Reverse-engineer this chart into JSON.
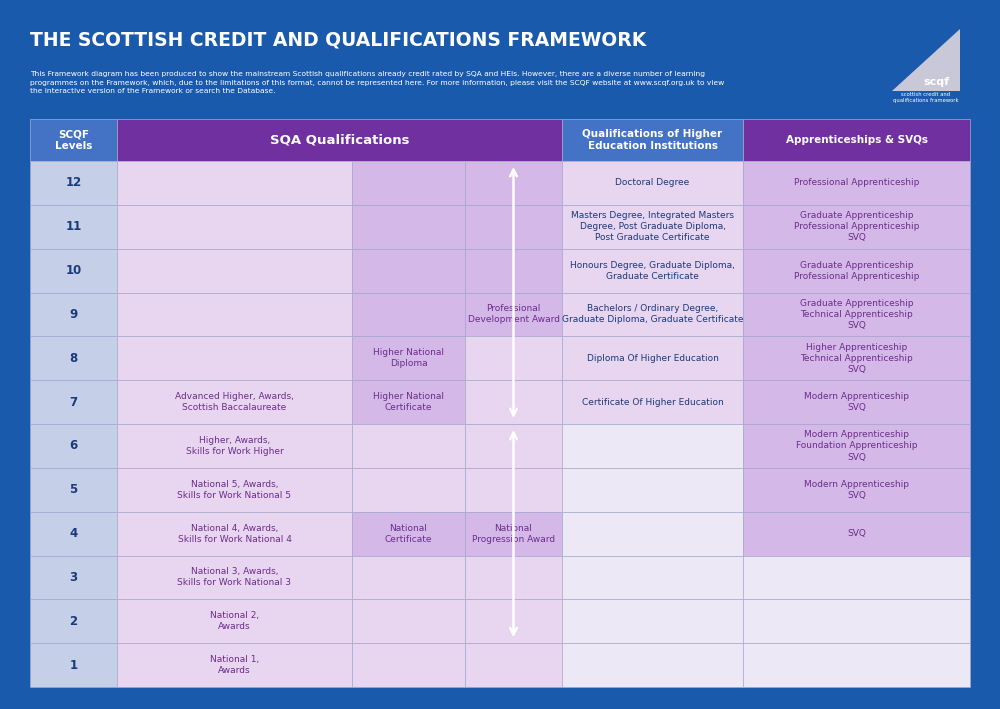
{
  "title": "THE SCOTTISH CREDIT AND QUALIFICATIONS FRAMEWORK",
  "subtitle": "This Framework diagram has been produced to show the mainstream Scottish qualifications already credit rated by SQA and HEIs. However, there are a diverse number of learning\nprogrammes on the Framework, which, due to the limitations of this format, cannot be represented here. For more information, please visit the SCQF website at www.scqf.org.uk to view\nthe interactive version of the Framework or search the Database.",
  "bg_color": "#1a5aad",
  "header_purple": "#7030a0",
  "header_blue": "#4472c4",
  "cell_light_purple": "#e8d5f0",
  "cell_medium_purple": "#d4b8e8",
  "cell_light_blue": "#c5d0e8",
  "cell_empty_purple": "#ede8f5",
  "text_dark_blue": "#1a3a7a",
  "text_purple": "#6b2d8b",
  "text_white": "#ffffff",
  "border_color": "#aaaacc",
  "levels": [
    12,
    11,
    10,
    9,
    8,
    7,
    6,
    5,
    4,
    3,
    2,
    1
  ],
  "col1_content": {
    "12": "",
    "11": "",
    "10": "",
    "9": "",
    "8": "",
    "7": "Advanced Higher, Awards,\nScottish Baccalaureate",
    "6": "Higher, Awards,\nSkills for Work Higher",
    "5": "National 5, Awards,\nSkills for Work National 5",
    "4": "National 4, Awards,\nSkills for Work National 4",
    "3": "National 3, Awards,\nSkills for Work National 3",
    "2": "National 2,\nAwards",
    "1": "National 1,\nAwards"
  },
  "col2_content": {
    "12": "",
    "11": "",
    "10": "",
    "9": "",
    "8": "Higher National\nDiploma",
    "7": "Higher National\nCertificate",
    "6": "",
    "5": "",
    "4": "National\nCertificate",
    "3": "",
    "2": "",
    "1": ""
  },
  "col3_content": {
    "12": "",
    "11": "",
    "10": "",
    "9": "Professional\nDevelopment Award",
    "8": "",
    "7": "",
    "6": "",
    "5": "",
    "4": "National\nProgression Award",
    "3": "",
    "2": "",
    "1": ""
  },
  "col4_content": {
    "12": "Doctoral Degree",
    "11": "Masters Degree, Integrated Masters\nDegree, Post Graduate Diploma,\nPost Graduate Certificate",
    "10": "Honours Degree, Graduate Diploma,\nGraduate Certificate",
    "9": "Bachelors / Ordinary Degree,\nGraduate Diploma, Graduate Certificate",
    "8": "Diploma Of Higher Education",
    "7": "Certificate Of Higher Education",
    "6": "",
    "5": "",
    "4": "",
    "3": "",
    "2": "",
    "1": ""
  },
  "col5_content": {
    "12": "Professional Apprenticeship",
    "11": "Graduate Apprenticeship\nProfessional Apprenticeship\nSVQ",
    "10": "Graduate Apprenticeship\nProfessional Apprenticeship",
    "9": "Graduate Apprenticeship\nTechnical Apprenticeship\nSVQ",
    "8": "Higher Apprenticeship\nTechnical Apprenticeship\nSVQ",
    "7": "Modern Apprenticeship\nSVQ",
    "6": "Modern Apprenticeship\nFoundation Apprenticeship\nSVQ",
    "5": "Modern Apprenticeship\nSVQ",
    "4": "SVQ",
    "3": "",
    "2": "",
    "1": ""
  }
}
